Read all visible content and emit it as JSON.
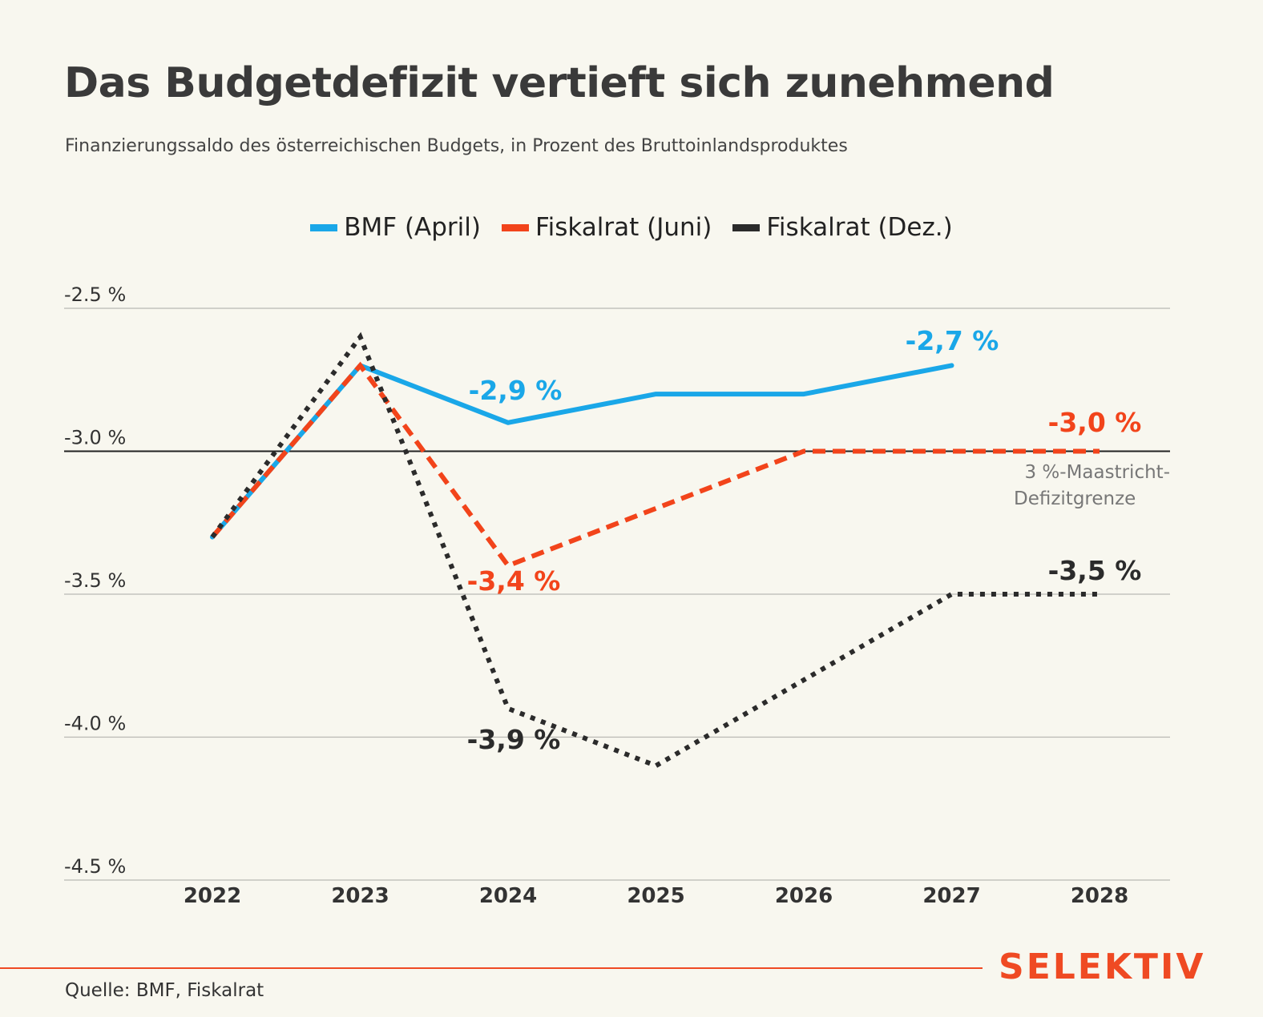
{
  "header": {
    "title": "Das Budgetdefizit vertieft sich zunehmend",
    "subtitle": "Finanzierungssaldo des österreichischen Budgets, in Prozent des Bruttoinlandsproduktes"
  },
  "footer": {
    "source": "Quelle: BMF, Fiskalrat",
    "brand": "SELEKTIV"
  },
  "chart_data": {
    "type": "line",
    "x": [
      2022,
      2023,
      2024,
      2025,
      2026,
      2027,
      2028
    ],
    "ylim": [
      -4.5,
      -2.5
    ],
    "y_ticks": [
      -2.5,
      -3.0,
      -3.5,
      -4.0,
      -4.5
    ],
    "y_tick_labels": [
      "-2.5 %",
      "-3.0 %",
      "-3.5 %",
      "-4.0 %",
      "-4.5 %"
    ],
    "x_tick_labels": [
      "2022",
      "2023",
      "2024",
      "2025",
      "2026",
      "2027",
      "2028"
    ],
    "grid": true,
    "legend_position": "top-center",
    "series": [
      {
        "name": "BMF (April)",
        "color": "#1aa7e8",
        "style": "solid",
        "x": [
          2022,
          2023,
          2024,
          2025,
          2026,
          2027
        ],
        "values": [
          -3.3,
          -2.7,
          -2.9,
          -2.8,
          -2.8,
          -2.7
        ]
      },
      {
        "name": "Fiskalrat (Juni)",
        "color": "#f2441b",
        "style": "dashed",
        "x": [
          2022,
          2023,
          2024,
          2025,
          2026,
          2027,
          2028
        ],
        "values": [
          -3.3,
          -2.7,
          -3.4,
          -3.2,
          -3.0,
          -3.0,
          -3.0
        ]
      },
      {
        "name": "Fiskalrat (Dez.)",
        "color": "#2b2b2b",
        "style": "dotted",
        "x": [
          2022,
          2023,
          2024,
          2025,
          2026,
          2027,
          2028
        ],
        "values": [
          -3.3,
          -2.6,
          -3.9,
          -4.1,
          -3.8,
          -3.5,
          -3.5
        ]
      }
    ],
    "reference_line": {
      "value": -3.0,
      "label_line1": "3 %-Maastricht-",
      "label_line2": "Defizitgrenze",
      "color": "#222222",
      "label_color": "#777777"
    },
    "annotations": [
      {
        "text": "-2,7 %",
        "series": 0,
        "color": "#1aa7e8"
      },
      {
        "text": "-2,9 %",
        "series": 0,
        "color": "#1aa7e8"
      },
      {
        "text": "-3,0 %",
        "series": 1,
        "color": "#f2441b"
      },
      {
        "text": "-3,4 %",
        "series": 1,
        "color": "#f2441b"
      },
      {
        "text": "-3,5 %",
        "series": 2,
        "color": "#2b2b2b"
      },
      {
        "text": "-3,9 %",
        "series": 2,
        "color": "#2b2b2b"
      }
    ]
  }
}
